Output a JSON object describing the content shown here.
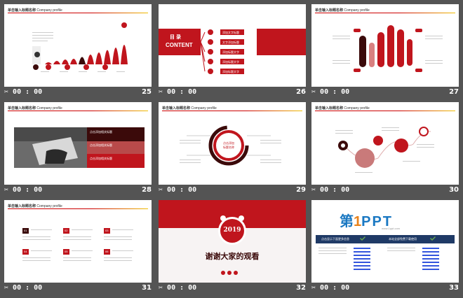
{
  "header_text": "单击输入标题名称",
  "header_sub": "Company profile",
  "time_label": "00 : 00",
  "colors": {
    "accent": "#c0151d",
    "dark": "#3b0a0a",
    "background": "#545454"
  },
  "slides": [
    {
      "number": "25"
    },
    {
      "number": "26",
      "title_cn": "目 录",
      "title_en": "CONTENT",
      "items": [
        "添加文字标题",
        "文字添加标题",
        "添加标题文字",
        "添加标题文字",
        "添加标题文字"
      ]
    },
    {
      "number": "27"
    },
    {
      "number": "28",
      "items": [
        "点击添加相关标题",
        "点击添加相关标题",
        "点击添加相关标题"
      ]
    },
    {
      "number": "29",
      "center1": "点击添加",
      "center2": "标题名称"
    },
    {
      "number": "30"
    },
    {
      "number": "31",
      "badges": [
        "01",
        "02",
        "03",
        "04",
        "05",
        "06"
      ]
    },
    {
      "number": "32",
      "year": "2019",
      "message": "谢谢大家的观看"
    },
    {
      "number": "33",
      "logo_cn": "第",
      "logo_num": "1",
      "logo_en": "PPT",
      "logo_url": "www.1ppt.com",
      "bar_left": "点击显示下面更多信息",
      "bar_right": "本站全部免费下载使用"
    }
  ]
}
